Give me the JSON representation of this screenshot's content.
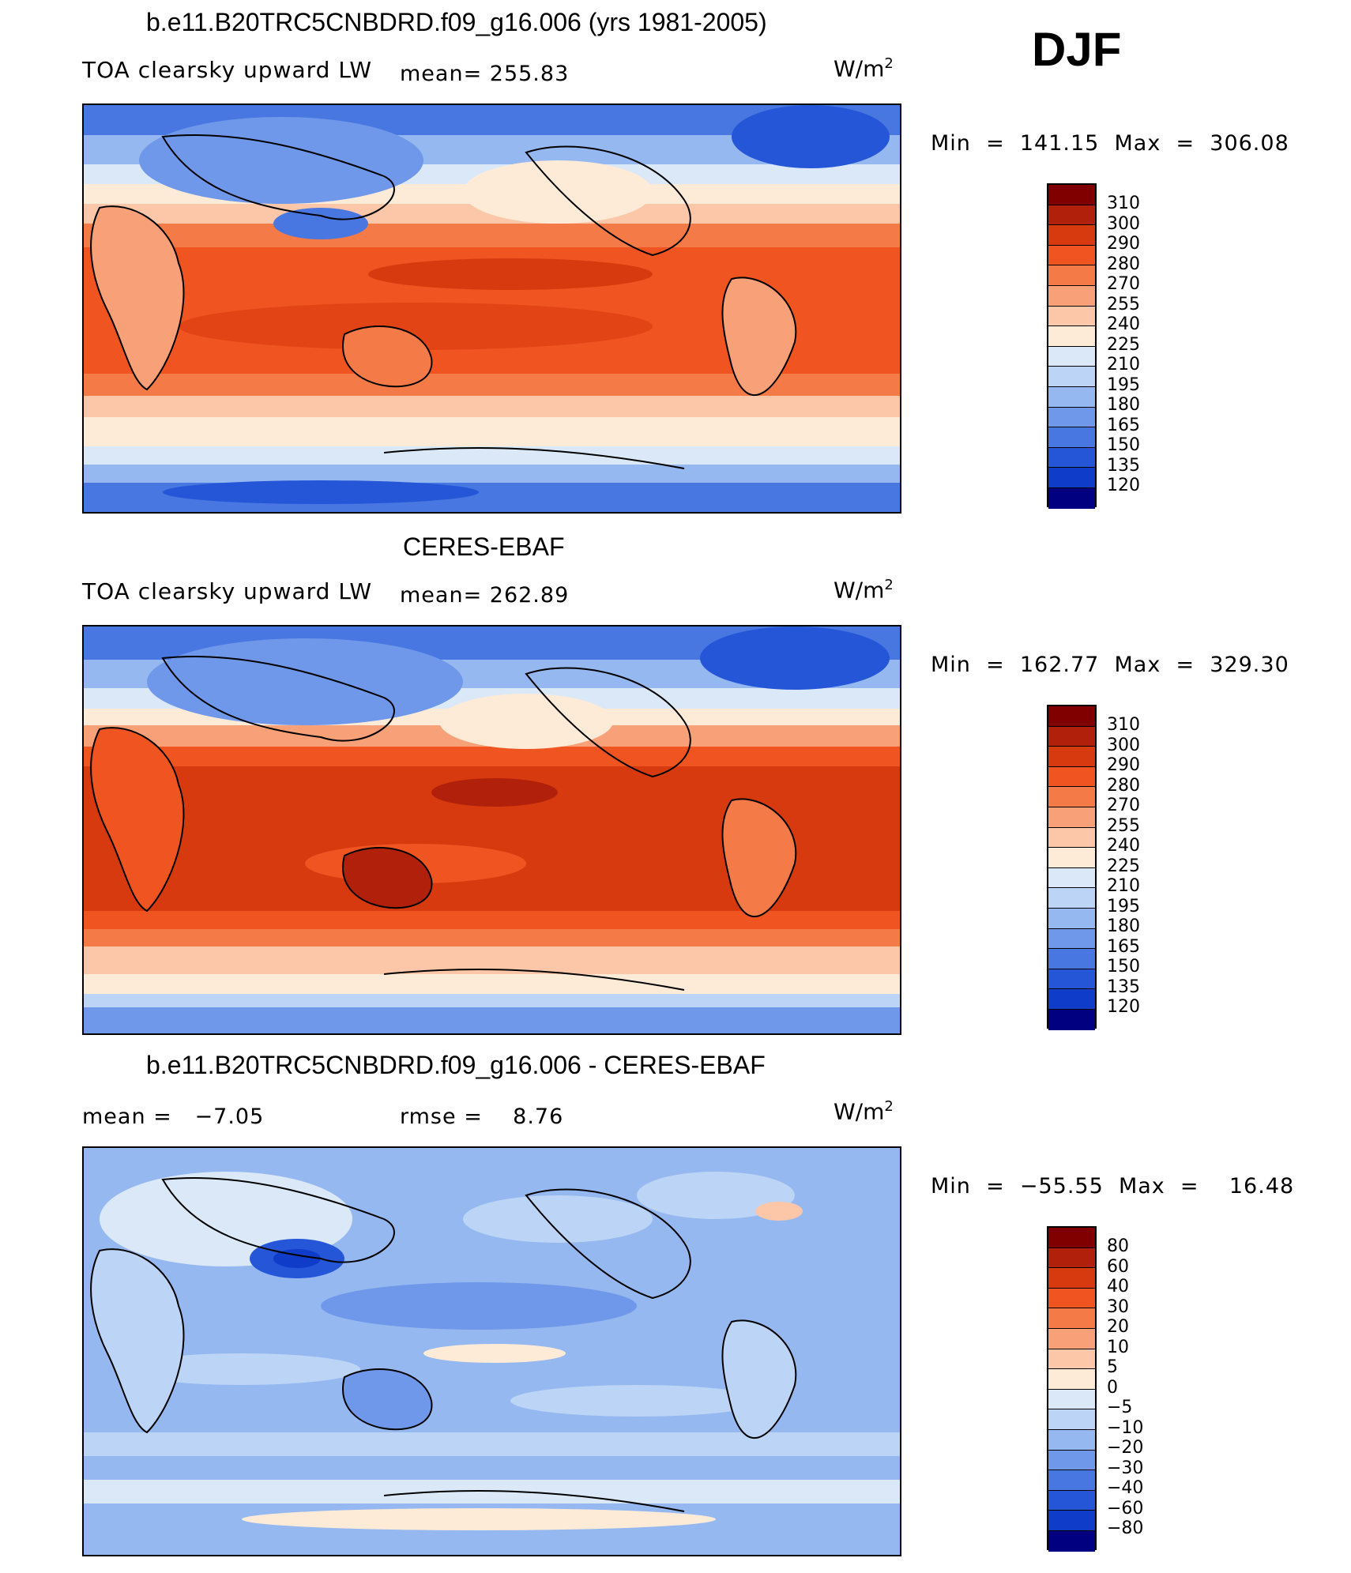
{
  "season": "DJF",
  "panels": [
    {
      "title": "b.e11.B20TRC5CNBDRD.f09_g16.006 (yrs 1981-2005)",
      "variable": "TOA clearsky upward LW",
      "stat1": "mean= 255.83",
      "stat2": "",
      "units": "W/m",
      "units_exp": "2",
      "range": "Min  =  141.15  Max  =  306.08",
      "colorbar_labels": [
        "310",
        "300",
        "290",
        "280",
        "270",
        "255",
        "240",
        "225",
        "210",
        "195",
        "180",
        "165",
        "150",
        "135",
        "120"
      ]
    },
    {
      "title": "CERES-EBAF",
      "variable": "TOA clearsky upward LW",
      "stat1": "mean= 262.89",
      "stat2": "",
      "units": "W/m",
      "units_exp": "2",
      "range": "Min  =  162.77  Max  =  329.30",
      "colorbar_labels": [
        "310",
        "300",
        "290",
        "280",
        "270",
        "255",
        "240",
        "225",
        "210",
        "195",
        "180",
        "165",
        "150",
        "135",
        "120"
      ]
    },
    {
      "title": "b.e11.B20TRC5CNBDRD.f09_g16.006 - CERES-EBAF",
      "variable": "",
      "stat1": "mean =   −7.05",
      "stat2": "rmse =    8.76",
      "units": "W/m",
      "units_exp": "2",
      "range": "Min  =  −55.55  Max  =    16.48",
      "colorbar_labels": [
        "80",
        "60",
        "40",
        "30",
        "20",
        "10",
        "5",
        "0",
        "−5",
        "−10",
        "−20",
        "−30",
        "−40",
        "−60",
        "−80"
      ]
    }
  ],
  "colors": {
    "absolute_scale": [
      "#800000",
      "#b0200a",
      "#d83a10",
      "#f05420",
      "#f47a48",
      "#f8a078",
      "#fbc7a8",
      "#fdebd8",
      "#dae8f8",
      "#bcd4f5",
      "#96b8f0",
      "#6f98ea",
      "#4877e2",
      "#2556d8",
      "#0f3cc8",
      "#062ca0",
      "#000080"
    ],
    "difference_scale": [
      "#800000",
      "#b0200a",
      "#d83a10",
      "#f05420",
      "#f47a48",
      "#f8a078",
      "#fbc7a8",
      "#fdebd8",
      "#dae8f8",
      "#bcd4f5",
      "#96b8f0",
      "#6f98ea",
      "#4877e2",
      "#2556d8",
      "#0f3cc8",
      "#062ca0",
      "#000080"
    ]
  }
}
